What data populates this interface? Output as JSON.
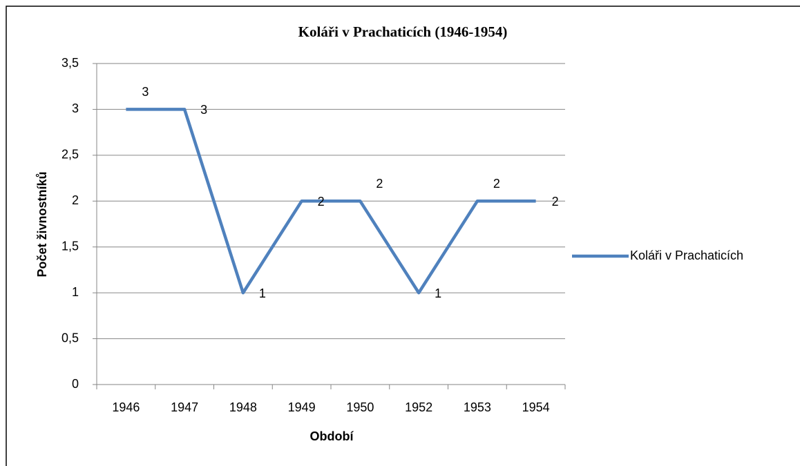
{
  "chart_data": {
    "type": "line",
    "title": "Koláři v Prachaticích (1946-1954)",
    "x_label": "Období",
    "y_label": "Počet živnostníků",
    "categories": [
      "1946",
      "1947",
      "1948",
      "1949",
      "1950",
      "1952",
      "1953",
      "1954"
    ],
    "series": [
      {
        "name": "Koláři v Prachaticích",
        "color": "#4f81bd",
        "values": [
          3,
          3,
          1,
          2,
          2,
          1,
          2,
          2
        ]
      }
    ],
    "ylim": [
      0,
      3.5
    ],
    "yticks": [
      0,
      {
        "value": 0.5,
        "label": "0,5"
      },
      1,
      {
        "value": 1.5,
        "label": "1,5"
      },
      2,
      {
        "value": 2.5,
        "label": "2,5"
      },
      3,
      {
        "value": 3.5,
        "label": "3,5"
      }
    ],
    "grid": true,
    "legend": "right"
  }
}
